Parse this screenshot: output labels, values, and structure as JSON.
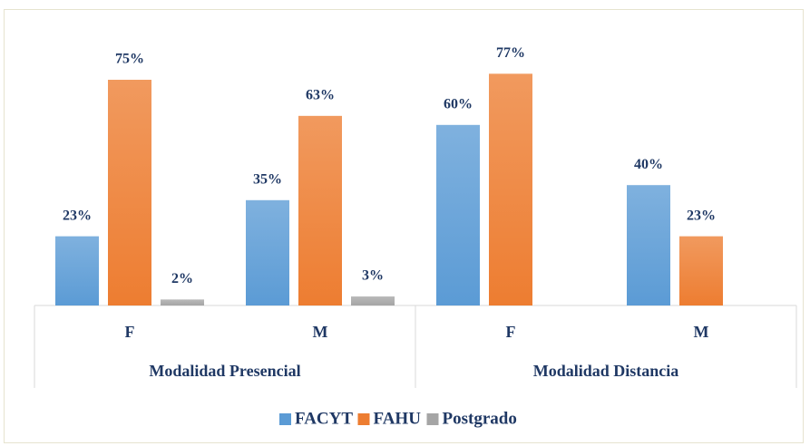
{
  "chart_data": {
    "type": "bar",
    "category_groups": [
      {
        "name": "Modalidad Presencial",
        "categories": [
          "F",
          "M"
        ]
      },
      {
        "name": "Modalidad Distancia",
        "categories": [
          "F",
          "M"
        ]
      }
    ],
    "series": [
      {
        "name": "FACYT",
        "color": "#5b9bd5",
        "values": [
          23,
          35,
          60,
          40
        ],
        "value_labels": [
          "23%",
          "35%",
          "60%",
          "40%"
        ]
      },
      {
        "name": "FAHU",
        "color": "#ed7d31",
        "values": [
          75,
          63,
          77,
          23
        ],
        "value_labels": [
          "75%",
          "63%",
          "77%",
          "23%"
        ]
      },
      {
        "name": "Postgrado",
        "color": "#a5a5a5",
        "values": [
          2,
          3,
          null,
          null
        ],
        "value_labels": [
          "2%",
          "3%",
          null,
          null
        ]
      }
    ],
    "legend": "bottom"
  }
}
